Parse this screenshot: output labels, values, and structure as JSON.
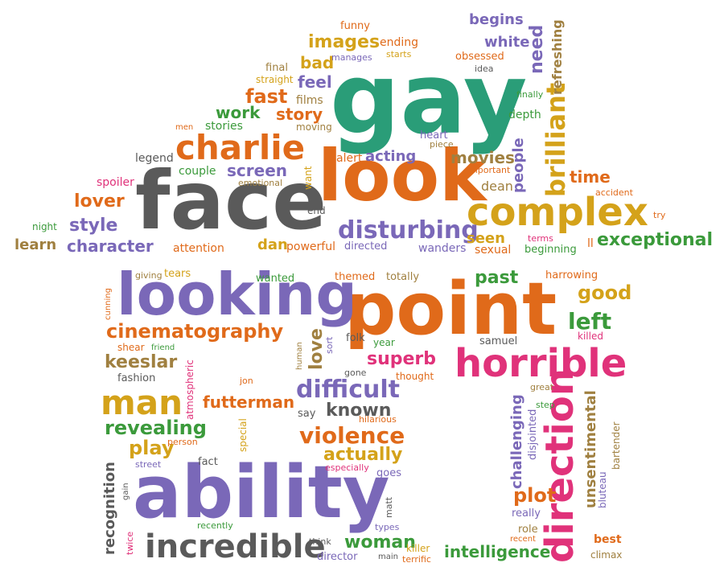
{
  "colors": {
    "teal": "#2a9d78",
    "orange": "#e06a1a",
    "purple": "#7a68b8",
    "gray": "#5a5a5a",
    "gold": "#d4a21a",
    "pink": "#e0327a",
    "green": "#3b9a3b",
    "olive": "#a08040"
  },
  "words": [
    "gay",
    "face",
    "look",
    "point",
    "looking",
    "ability",
    "complex",
    "charlie",
    "horrible",
    "direction",
    "incredible",
    "cinematography",
    "man",
    "difficult",
    "disturbing",
    "brilliant",
    "violence",
    "actually",
    "keeslar",
    "futterman",
    "revealing",
    "play",
    "superb",
    "known",
    "love",
    "left",
    "good",
    "past",
    "plot",
    "woman",
    "intelligence",
    "exceptional",
    "character",
    "style",
    "lover",
    "learn",
    "night",
    "spoiler",
    "legend",
    "couple",
    "screen",
    "emotional",
    "stories",
    "work",
    "fast",
    "story",
    "films",
    "moving",
    "feel",
    "bad",
    "images",
    "final",
    "straight",
    "manages",
    "ending",
    "starts",
    "funny",
    "begins",
    "white",
    "need",
    "refreshing",
    "obsessed",
    "idea",
    "finally",
    "depth",
    "heart",
    "piece",
    "alert",
    "acting",
    "movies",
    "important",
    "dean",
    "people",
    "time",
    "accident",
    "try",
    "want",
    "end",
    "dan",
    "powerful",
    "directed",
    "wanders",
    "seen",
    "sexual",
    "terms",
    "beginning",
    "ll",
    "attention",
    "giving",
    "tears",
    "wanted",
    "themed",
    "totally",
    "harrowing",
    "cunning",
    "shear",
    "friend",
    "human",
    "sort",
    "year",
    "folk",
    "samuel",
    "killed",
    "fashion",
    "gone",
    "thought",
    "jon",
    "atmospheric",
    "great",
    "step",
    "challenging",
    "disjointed",
    "bluteau",
    "bartender",
    "unsentimental",
    "hilarious",
    "say",
    "person",
    "special",
    "street",
    "fact",
    "especially",
    "goes",
    "recognition",
    "gain",
    "recently",
    "twice",
    "matt",
    "types",
    "think",
    "director",
    "main",
    "terrific",
    "killer",
    "really",
    "role",
    "recent",
    "best",
    "climax",
    "men"
  ]
}
